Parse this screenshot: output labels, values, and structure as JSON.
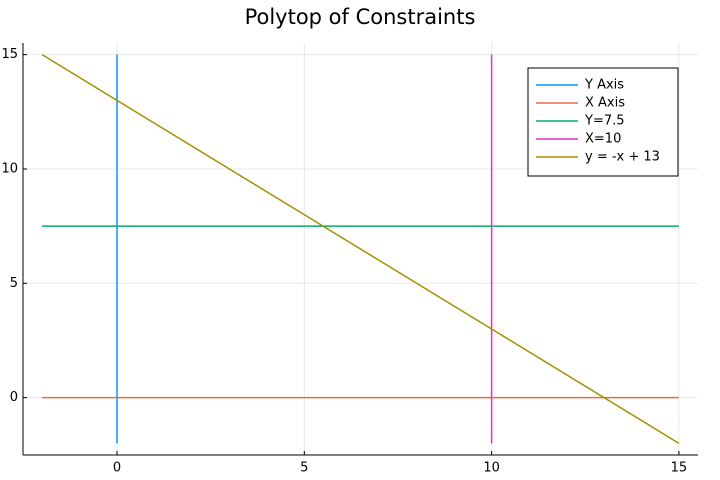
{
  "chart_data": {
    "type": "line",
    "title": "Polytop of Constraints",
    "series": [
      {
        "name": "Y Axis",
        "color": "#009af9",
        "x": [
          0,
          0
        ],
        "values": [
          -2,
          15
        ]
      },
      {
        "name": "X Axis",
        "color": "#e26f46",
        "x": [
          -2,
          15
        ],
        "values": [
          0,
          0
        ]
      },
      {
        "name": "Y=7.5",
        "color": "#00b060",
        "x": [
          -2,
          15
        ],
        "values": [
          7.5,
          7.5
        ]
      },
      {
        "name": "X=10",
        "color": "#e030c8",
        "x": [
          10,
          10
        ],
        "values": [
          -2,
          15
        ]
      },
      {
        "name": "y = -x + 13",
        "color": "#a88e00",
        "x": [
          -2,
          15
        ],
        "values": [
          15,
          -2
        ]
      }
    ],
    "xlim": [
      -2.51,
      15.51
    ],
    "ylim": [
      -2.51,
      15.51
    ],
    "xticks": [
      0,
      5,
      10,
      15
    ],
    "yticks": [
      0,
      5,
      10,
      15
    ],
    "grid": true,
    "legend": "top-right"
  }
}
